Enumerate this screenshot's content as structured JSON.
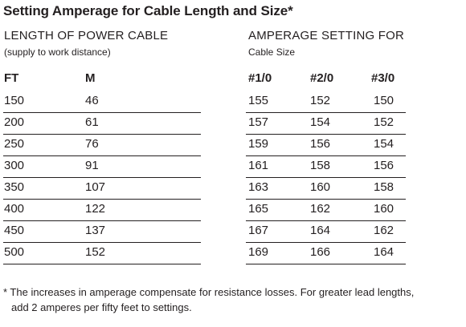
{
  "title": "Setting Amperage for Cable Length and Size*",
  "left_header": {
    "line1": "LENGTH OF POWER CABLE",
    "line2": "(supply to work distance)"
  },
  "right_header": {
    "line1": "AMPERAGE SETTING FOR",
    "line2": "Cable Size"
  },
  "columns": [
    "FT",
    "M",
    "#1/0",
    "#2/0",
    "#3/0"
  ],
  "rows": [
    [
      "150",
      "46",
      "155",
      "152",
      "150"
    ],
    [
      "200",
      "61",
      "157",
      "154",
      "152"
    ],
    [
      "250",
      "76",
      "159",
      "156",
      "154"
    ],
    [
      "300",
      "91",
      "161",
      "158",
      "156"
    ],
    [
      "350",
      "107",
      "163",
      "160",
      "158"
    ],
    [
      "400",
      "122",
      "165",
      "162",
      "160"
    ],
    [
      "450",
      "137",
      "167",
      "164",
      "162"
    ],
    [
      "500",
      "152",
      "169",
      "166",
      "164"
    ]
  ],
  "footnote": {
    "line1": "* The increases in amperage compensate for resistance losses. For greater lead lengths,",
    "line2": "add 2 amperes per fifty feet to settings."
  }
}
